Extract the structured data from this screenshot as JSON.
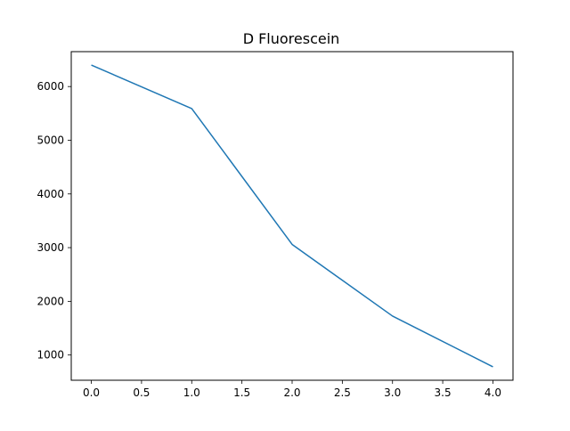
{
  "chart_data": {
    "type": "line",
    "title": "D Fluorescein",
    "xlabel": "",
    "ylabel": "",
    "x": [
      0,
      1,
      2,
      3,
      4
    ],
    "series": [
      {
        "values": [
          6400,
          5590,
          3060,
          1725,
          780
        ],
        "color": "#1f77b4"
      }
    ],
    "xlim": [
      -0.2,
      4.2
    ],
    "ylim": [
      530,
      6650
    ],
    "xticks": [
      0.0,
      0.5,
      1.0,
      1.5,
      2.0,
      2.5,
      3.0,
      3.5,
      4.0
    ],
    "xtick_labels": [
      "0.0",
      "0.5",
      "1.0",
      "1.5",
      "2.0",
      "2.5",
      "3.0",
      "3.5",
      "4.0"
    ],
    "yticks": [
      1000,
      2000,
      3000,
      4000,
      5000,
      6000
    ],
    "ytick_labels": [
      "1000",
      "2000",
      "3000",
      "4000",
      "5000",
      "6000"
    ],
    "grid": false,
    "legend": "none"
  }
}
